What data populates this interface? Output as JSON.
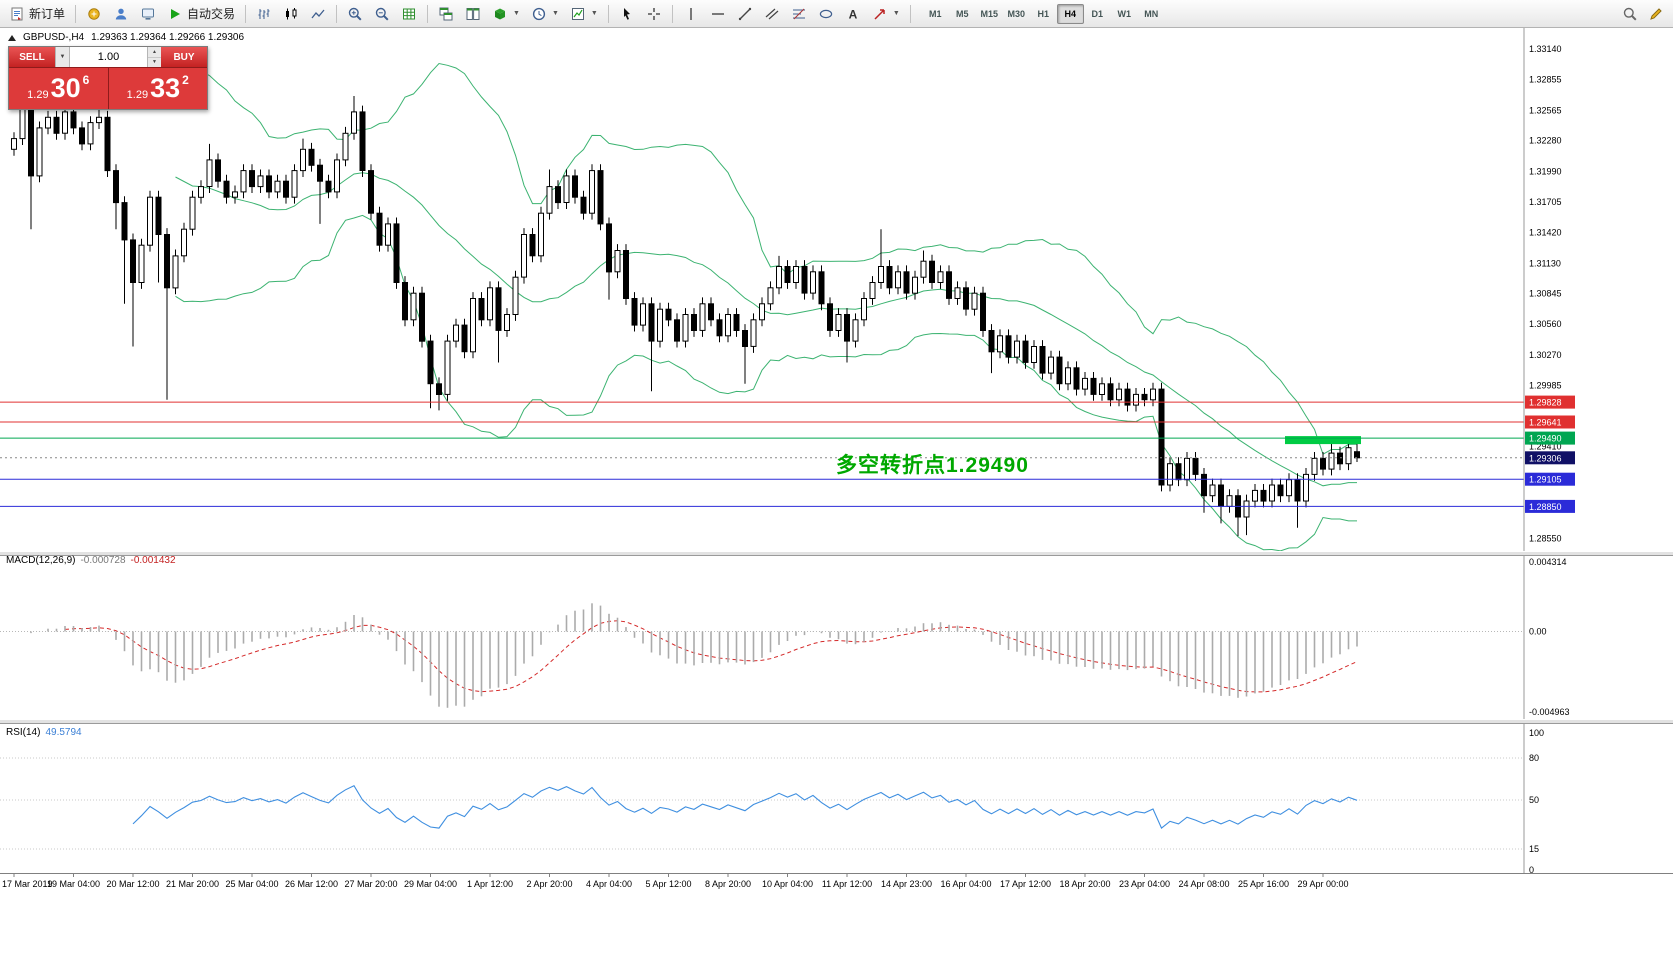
{
  "toolbar": {
    "new_order_label": "新订单",
    "autotrading_label": "自动交易",
    "timeframes": [
      "M1",
      "M5",
      "M15",
      "M30",
      "H1",
      "H4",
      "D1",
      "W1",
      "MN"
    ],
    "active_timeframe": "H4"
  },
  "chart": {
    "header_symbol": "GBPUSD-,H4",
    "header_ohlc": "1.29363 1.29364 1.29266 1.29306"
  },
  "trade_panel": {
    "sell_label": "SELL",
    "buy_label": "BUY",
    "volume": "1.00",
    "sell_price": {
      "prefix": "1.29",
      "big": "30",
      "sup": "6"
    },
    "buy_price": {
      "prefix": "1.29",
      "big": "33",
      "sup": "2"
    }
  },
  "chart_data": {
    "type": "candlestick",
    "symbol": "GBPUSD-",
    "timeframe": "H4",
    "price_range": {
      "max": 1.333,
      "min": 1.2845
    },
    "price_axis_labels": [
      "1.33140",
      "1.32855",
      "1.32565",
      "1.32280",
      "1.31990",
      "1.31705",
      "1.31420",
      "1.31130",
      "1.30845",
      "1.30560",
      "1.30270",
      "1.29985",
      "1.29410",
      "1.28550"
    ],
    "hlines": [
      {
        "price": 1.29828,
        "label": "1.29828",
        "color": "#e03030"
      },
      {
        "price": 1.29641,
        "label": "1.29641",
        "color": "#e03030"
      },
      {
        "price": 1.2949,
        "label": "1.29490",
        "color": "#00a651"
      },
      {
        "price": 1.29105,
        "label": "1.29105",
        "color": "#2b2bd8"
      },
      {
        "price": 1.2885,
        "label": "1.28850",
        "color": "#2b2bd8"
      }
    ],
    "current_price": {
      "price": 1.29306,
      "label": "1.29306",
      "bg": "#101066"
    },
    "bollinger": {
      "period": 20,
      "deviation": 2,
      "color": "#3cb371"
    },
    "highlight_box": {
      "from": 150,
      "to": 158,
      "price": 1.2949,
      "color": "#00cc44"
    },
    "annotations": [
      {
        "type": "text",
        "text": "多空转折点1.29490",
        "color": "#00a800"
      }
    ],
    "macd": {
      "label": "MACD(12,26,9)",
      "value_main": "-0.000728",
      "value_signal": "-0.001432",
      "fast": 12,
      "slow": 26,
      "signal": 9,
      "hist_color": "#ababab",
      "signal_color": "#d42a2a",
      "range": {
        "max": 0.004314,
        "min": -0.004963
      },
      "axis": [
        {
          "text": "0.004314",
          "value": 0.004314
        },
        {
          "text": "0.00",
          "value": 0
        },
        {
          "text": "-0.004963",
          "value": -0.004963
        }
      ]
    },
    "rsi": {
      "label": "RSI(14)",
      "value_text": "49.5794",
      "period": 14,
      "color": "#3f8fe0",
      "levels": [
        80,
        50,
        15
      ],
      "axis": [
        {
          "text": "100",
          "value": 100
        },
        {
          "text": "80",
          "value": 80
        },
        {
          "text": "50",
          "value": 50
        },
        {
          "text": "15",
          "value": 15
        },
        {
          "text": "0",
          "value": 0
        }
      ]
    },
    "time_axis": [
      "17 Mar 2019",
      "19 Mar 04:00",
      "20 Mar 12:00",
      "21 Mar 20:00",
      "25 Mar 04:00",
      "26 Mar 12:00",
      "27 Mar 20:00",
      "29 Mar 04:00",
      "1 Apr 12:00",
      "2 Apr 20:00",
      "4 Apr 04:00",
      "5 Apr 12:00",
      "8 Apr 20:00",
      "10 Apr 04:00",
      "11 Apr 12:00",
      "14 Apr 23:00",
      "16 Apr 04:00",
      "17 Apr 12:00",
      "18 Apr 20:00",
      "23 Apr 04:00",
      "24 Apr 08:00",
      "25 Apr 16:00",
      "29 Apr 00:00"
    ],
    "candles": [
      [
        1.322,
        1.3236,
        1.3214,
        1.323
      ],
      [
        1.323,
        1.327,
        1.3224,
        1.326
      ],
      [
        1.326,
        1.3266,
        1.3145,
        1.3195
      ],
      [
        1.3195,
        1.3246,
        1.3189,
        1.324
      ],
      [
        1.324,
        1.3256,
        1.3234,
        1.325
      ],
      [
        1.325,
        1.3256,
        1.3229,
        1.3235
      ],
      [
        1.3235,
        1.3261,
        1.3229,
        1.3255
      ],
      [
        1.3255,
        1.3261,
        1.3234,
        1.324
      ],
      [
        1.324,
        1.3246,
        1.3219,
        1.3225
      ],
      [
        1.3225,
        1.3251,
        1.3219,
        1.3245
      ],
      [
        1.3245,
        1.326,
        1.3239,
        1.325
      ],
      [
        1.325,
        1.3256,
        1.3194,
        1.32
      ],
      [
        1.32,
        1.3206,
        1.3145,
        1.317
      ],
      [
        1.317,
        1.3176,
        1.3075,
        1.3135
      ],
      [
        1.3135,
        1.3141,
        1.3035,
        1.3095
      ],
      [
        1.3095,
        1.3136,
        1.3089,
        1.313
      ],
      [
        1.313,
        1.3181,
        1.3124,
        1.3175
      ],
      [
        1.3175,
        1.3181,
        1.3095,
        1.314
      ],
      [
        1.314,
        1.3146,
        1.2985,
        1.309
      ],
      [
        1.309,
        1.3126,
        1.3084,
        1.312
      ],
      [
        1.312,
        1.3151,
        1.3114,
        1.3145
      ],
      [
        1.3145,
        1.3181,
        1.3139,
        1.3175
      ],
      [
        1.3175,
        1.3191,
        1.3169,
        1.3185
      ],
      [
        1.3185,
        1.3225,
        1.3179,
        1.321
      ],
      [
        1.321,
        1.3216,
        1.3184,
        1.319
      ],
      [
        1.319,
        1.3196,
        1.3169,
        1.3175
      ],
      [
        1.3175,
        1.3186,
        1.3169,
        1.318
      ],
      [
        1.318,
        1.3206,
        1.3174,
        1.32
      ],
      [
        1.32,
        1.3206,
        1.3179,
        1.3185
      ],
      [
        1.3185,
        1.3201,
        1.3179,
        1.3195
      ],
      [
        1.3195,
        1.3201,
        1.3174,
        1.318
      ],
      [
        1.318,
        1.3196,
        1.3174,
        1.319
      ],
      [
        1.319,
        1.3196,
        1.3169,
        1.3175
      ],
      [
        1.3175,
        1.3206,
        1.3169,
        1.32
      ],
      [
        1.32,
        1.323,
        1.3194,
        1.322
      ],
      [
        1.322,
        1.3226,
        1.3199,
        1.3205
      ],
      [
        1.3205,
        1.3211,
        1.315,
        1.319
      ],
      [
        1.319,
        1.3196,
        1.3174,
        1.318
      ],
      [
        1.318,
        1.3216,
        1.3174,
        1.321
      ],
      [
        1.321,
        1.3241,
        1.3204,
        1.3235
      ],
      [
        1.3235,
        1.327,
        1.3229,
        1.3255
      ],
      [
        1.3255,
        1.3261,
        1.3194,
        1.32
      ],
      [
        1.32,
        1.3206,
        1.3154,
        1.316
      ],
      [
        1.316,
        1.3166,
        1.3124,
        1.313
      ],
      [
        1.313,
        1.3156,
        1.3124,
        1.315
      ],
      [
        1.315,
        1.3156,
        1.3089,
        1.3095
      ],
      [
        1.3095,
        1.3101,
        1.3054,
        1.306
      ],
      [
        1.306,
        1.3091,
        1.3054,
        1.3085
      ],
      [
        1.3085,
        1.3091,
        1.3034,
        1.304
      ],
      [
        1.304,
        1.3046,
        1.2977,
        1.3
      ],
      [
        1.3,
        1.3006,
        1.2975,
        1.299
      ],
      [
        1.299,
        1.3046,
        1.2984,
        1.304
      ],
      [
        1.304,
        1.3061,
        1.3034,
        1.3055
      ],
      [
        1.3055,
        1.3061,
        1.3024,
        1.303
      ],
      [
        1.303,
        1.3086,
        1.3024,
        1.308
      ],
      [
        1.308,
        1.3086,
        1.3054,
        1.306
      ],
      [
        1.306,
        1.3096,
        1.3054,
        1.309
      ],
      [
        1.309,
        1.3096,
        1.302,
        1.305
      ],
      [
        1.305,
        1.3071,
        1.3044,
        1.3065
      ],
      [
        1.3065,
        1.3106,
        1.3059,
        1.31
      ],
      [
        1.31,
        1.3146,
        1.3094,
        1.314
      ],
      [
        1.314,
        1.3146,
        1.3114,
        1.312
      ],
      [
        1.312,
        1.3166,
        1.3114,
        1.316
      ],
      [
        1.316,
        1.3201,
        1.3154,
        1.3185
      ],
      [
        1.3185,
        1.3191,
        1.3164,
        1.317
      ],
      [
        1.317,
        1.3201,
        1.3164,
        1.3195
      ],
      [
        1.3195,
        1.3201,
        1.3169,
        1.3175
      ],
      [
        1.3175,
        1.3181,
        1.3154,
        1.316
      ],
      [
        1.316,
        1.3206,
        1.3154,
        1.32
      ],
      [
        1.32,
        1.3206,
        1.3144,
        1.315
      ],
      [
        1.315,
        1.3156,
        1.3079,
        1.3105
      ],
      [
        1.3105,
        1.3131,
        1.3099,
        1.3125
      ],
      [
        1.3125,
        1.3131,
        1.3074,
        1.308
      ],
      [
        1.308,
        1.3086,
        1.3049,
        1.3055
      ],
      [
        1.3055,
        1.3081,
        1.3049,
        1.3075
      ],
      [
        1.3075,
        1.3081,
        1.2993,
        1.304
      ],
      [
        1.304,
        1.3076,
        1.3034,
        1.307
      ],
      [
        1.307,
        1.3076,
        1.3054,
        1.306
      ],
      [
        1.306,
        1.3066,
        1.3034,
        1.304
      ],
      [
        1.304,
        1.3071,
        1.3034,
        1.3065
      ],
      [
        1.3065,
        1.3071,
        1.3044,
        1.305
      ],
      [
        1.305,
        1.3081,
        1.3044,
        1.3075
      ],
      [
        1.3075,
        1.3081,
        1.3054,
        1.306
      ],
      [
        1.306,
        1.3066,
        1.3039,
        1.3045
      ],
      [
        1.3045,
        1.3071,
        1.3039,
        1.3065
      ],
      [
        1.3065,
        1.3071,
        1.3044,
        1.305
      ],
      [
        1.305,
        1.3056,
        1.3,
        1.3035
      ],
      [
        1.3035,
        1.3066,
        1.3029,
        1.306
      ],
      [
        1.306,
        1.3081,
        1.3054,
        1.3075
      ],
      [
        1.3075,
        1.3096,
        1.3069,
        1.309
      ],
      [
        1.309,
        1.312,
        1.3084,
        1.311
      ],
      [
        1.311,
        1.3116,
        1.3089,
        1.3095
      ],
      [
        1.3095,
        1.3116,
        1.3089,
        1.311
      ],
      [
        1.311,
        1.3116,
        1.3079,
        1.3085
      ],
      [
        1.3085,
        1.3111,
        1.3079,
        1.3105
      ],
      [
        1.3105,
        1.3111,
        1.3069,
        1.3075
      ],
      [
        1.3075,
        1.3081,
        1.3044,
        1.305
      ],
      [
        1.305,
        1.3071,
        1.3044,
        1.3065
      ],
      [
        1.3065,
        1.3071,
        1.302,
        1.304
      ],
      [
        1.304,
        1.3066,
        1.3034,
        1.306
      ],
      [
        1.306,
        1.3086,
        1.3054,
        1.308
      ],
      [
        1.308,
        1.3101,
        1.3074,
        1.3095
      ],
      [
        1.3095,
        1.3145,
        1.3089,
        1.311
      ],
      [
        1.311,
        1.3116,
        1.3084,
        1.309
      ],
      [
        1.309,
        1.3111,
        1.3084,
        1.3105
      ],
      [
        1.3105,
        1.3111,
        1.3079,
        1.3085
      ],
      [
        1.3085,
        1.3106,
        1.3079,
        1.31
      ],
      [
        1.31,
        1.3125,
        1.3094,
        1.3115
      ],
      [
        1.3115,
        1.3121,
        1.3089,
        1.3095
      ],
      [
        1.3095,
        1.3111,
        1.3089,
        1.3105
      ],
      [
        1.3105,
        1.3111,
        1.3074,
        1.308
      ],
      [
        1.308,
        1.3096,
        1.3074,
        1.309
      ],
      [
        1.309,
        1.3096,
        1.3064,
        1.307
      ],
      [
        1.307,
        1.3091,
        1.3064,
        1.3085
      ],
      [
        1.3085,
        1.3091,
        1.3044,
        1.305
      ],
      [
        1.305,
        1.3056,
        1.301,
        1.303
      ],
      [
        1.303,
        1.3051,
        1.3024,
        1.3045
      ],
      [
        1.3045,
        1.3051,
        1.3019,
        1.3025
      ],
      [
        1.3025,
        1.3046,
        1.3019,
        1.304
      ],
      [
        1.304,
        1.3046,
        1.3014,
        1.302
      ],
      [
        1.302,
        1.3041,
        1.3014,
        1.3035
      ],
      [
        1.3035,
        1.3041,
        1.3004,
        1.301
      ],
      [
        1.301,
        1.3031,
        1.3004,
        1.3025
      ],
      [
        1.3025,
        1.3031,
        1.2994,
        1.3
      ],
      [
        1.3,
        1.3021,
        1.2994,
        1.3015
      ],
      [
        1.3015,
        1.3021,
        1.2989,
        1.2995
      ],
      [
        1.2995,
        1.3011,
        1.2989,
        1.3005
      ],
      [
        1.3005,
        1.3011,
        1.2984,
        1.299
      ],
      [
        1.299,
        1.3006,
        1.2984,
        1.3
      ],
      [
        1.3,
        1.3006,
        1.2979,
        1.2985
      ],
      [
        1.2985,
        1.3001,
        1.2979,
        1.2995
      ],
      [
        1.2995,
        1.3001,
        1.2974,
        1.298
      ],
      [
        1.298,
        1.2996,
        1.2974,
        1.299
      ],
      [
        1.299,
        1.2996,
        1.2979,
        1.2985
      ],
      [
        1.2985,
        1.3001,
        1.2979,
        1.2995
      ],
      [
        1.2995,
        1.3001,
        1.2899,
        1.2905
      ],
      [
        1.2905,
        1.2931,
        1.2899,
        1.2925
      ],
      [
        1.2925,
        1.2931,
        1.2904,
        1.291
      ],
      [
        1.291,
        1.2936,
        1.2904,
        1.293
      ],
      [
        1.293,
        1.2936,
        1.2909,
        1.2915
      ],
      [
        1.2915,
        1.2921,
        1.2879,
        1.2895
      ],
      [
        1.2895,
        1.2911,
        1.2889,
        1.2905
      ],
      [
        1.2905,
        1.2911,
        1.2869,
        1.2885
      ],
      [
        1.2885,
        1.2901,
        1.2879,
        1.2895
      ],
      [
        1.2895,
        1.2901,
        1.2857,
        1.2875
      ],
      [
        1.2875,
        1.2896,
        1.2858,
        1.289
      ],
      [
        1.289,
        1.2906,
        1.2884,
        1.29
      ],
      [
        1.29,
        1.2906,
        1.2884,
        1.289
      ],
      [
        1.289,
        1.2911,
        1.2884,
        1.2905
      ],
      [
        1.2905,
        1.2911,
        1.2889,
        1.2895
      ],
      [
        1.2895,
        1.2916,
        1.2889,
        1.291
      ],
      [
        1.291,
        1.2916,
        1.2865,
        1.289
      ],
      [
        1.289,
        1.2921,
        1.2884,
        1.2915
      ],
      [
        1.2915,
        1.2936,
        1.2909,
        1.293
      ],
      [
        1.293,
        1.2936,
        1.2914,
        1.292
      ],
      [
        1.292,
        1.2945,
        1.2914,
        1.2935
      ],
      [
        1.2935,
        1.2941,
        1.2919,
        1.2925
      ],
      [
        1.2925,
        1.2948,
        1.2919,
        1.294
      ],
      [
        1.29363,
        1.2944,
        1.29266,
        1.29306
      ]
    ]
  }
}
